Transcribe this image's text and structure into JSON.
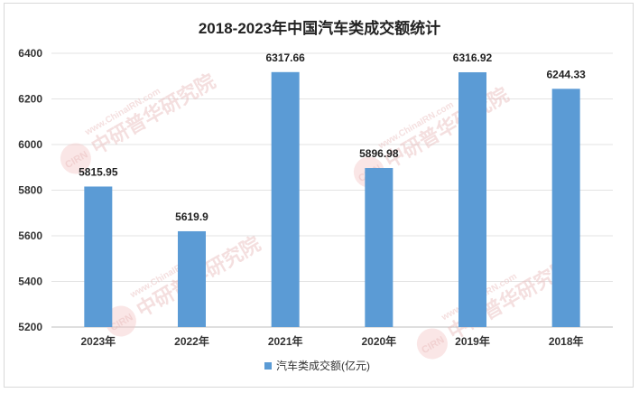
{
  "chart_data": {
    "type": "bar",
    "title": "2018-2023年中国汽车类成交额统计",
    "categories": [
      "2023年",
      "2022年",
      "2021年",
      "2020年",
      "2019年",
      "2018年"
    ],
    "series": [
      {
        "name": "汽车类成交额(亿元)",
        "values": [
          5815.95,
          5619.9,
          6317.66,
          5896.98,
          6316.92,
          6244.33
        ]
      }
    ],
    "data_labels": [
      "5815.95",
      "5619.9",
      "6317.66",
      "5896.98",
      "6316.92",
      "6244.33"
    ],
    "yticks": [
      "6400",
      "6200",
      "6000",
      "5800",
      "5600",
      "5400",
      "5200"
    ],
    "ylim": [
      5200,
      6400
    ],
    "grid": true,
    "legend": "bottom",
    "bar_color": "#5b9bd5"
  },
  "watermark": {
    "text": "中研普华研究院",
    "url": "www.ChinaIRN.com",
    "badge": "CIRN"
  }
}
